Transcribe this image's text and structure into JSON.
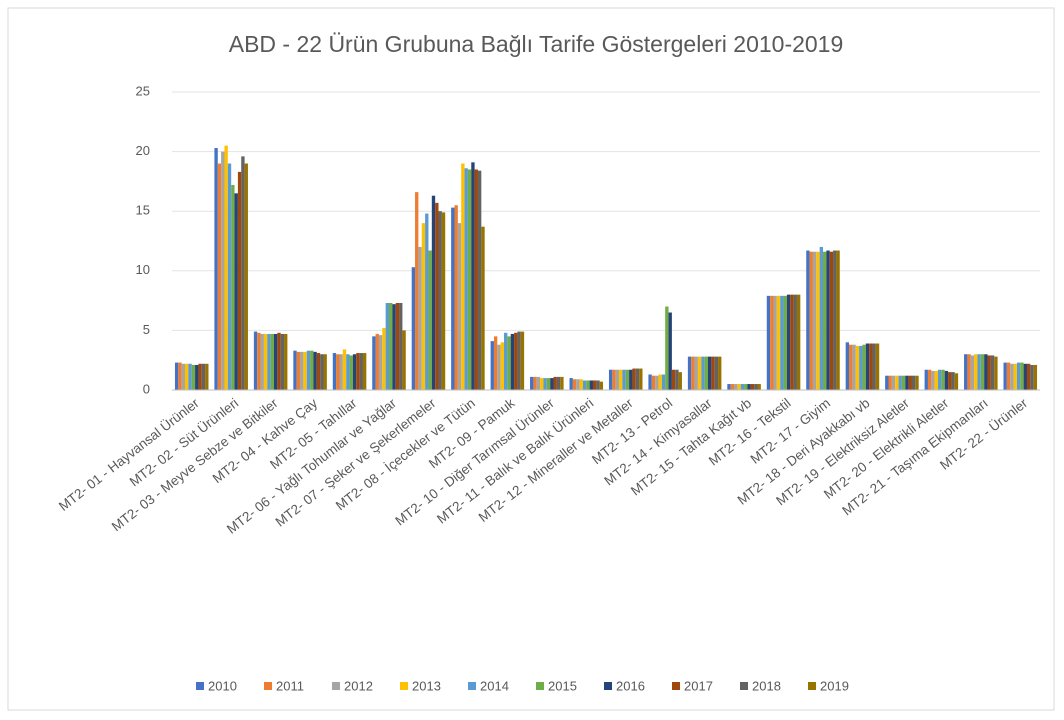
{
  "chart_data": {
    "type": "bar",
    "title": "ABD - 22 Ürün Grubuna Bağlı Tarife Göstergeleri 2010-2019",
    "categories": [
      "MT2- 01 - Hayvansal Ürünler",
      "MT2- 02 - Süt Ürünleri",
      "MT2- 03 - Meyve Sebze ve Bitkiler",
      "MT2- 04 - Kahve Çay",
      "MT2- 05 - Tahıllar",
      "MT2- 06 - Yağlı Tohumlar ve Yağlar",
      "MT2- 07 - Şeker ve Şekerlemeler",
      "MT2- 08 - İçecekler ve Tütün",
      "MT2- 09 - Pamuk",
      "MT2- 10 - Diğer Tarımsal Ürünler",
      "MT2- 11 - Balık ve Balık Ürünleri",
      "MT2- 12 - Mineraller ve Metaller",
      "MT2- 13 - Petrol",
      "MT2- 14 - Kimyasallar",
      "MT2- 15 - Tahta Kağıt vb",
      "MT2- 16 - Tekstil",
      "MT2- 17 - Giyim",
      "MT2- 18 - Deri Ayakkabı vb",
      "MT2- 19 - Elektriksiz Aletler",
      "MT2- 20 - Elektrikli Aletler",
      "MT2- 21 - Taşıma Ekipmanları",
      "MT2- 22 - Ürünler"
    ],
    "series": [
      {
        "name": "2010",
        "color": "#4472c4",
        "values": [
          2.3,
          20.3,
          4.9,
          3.3,
          3.1,
          4.5,
          10.3,
          15.3,
          4.1,
          1.1,
          1.0,
          1.7,
          1.3,
          2.8,
          0.5,
          7.9,
          11.7,
          4.0,
          1.2,
          1.7,
          3.0,
          2.3
        ]
      },
      {
        "name": "2011",
        "color": "#ed7d31",
        "values": [
          2.3,
          19.0,
          4.8,
          3.2,
          3.0,
          4.7,
          16.6,
          15.5,
          4.5,
          1.1,
          0.9,
          1.7,
          1.2,
          2.8,
          0.5,
          7.9,
          11.6,
          3.8,
          1.2,
          1.7,
          3.0,
          2.3
        ]
      },
      {
        "name": "2012",
        "color": "#a5a5a5",
        "values": [
          2.2,
          20.0,
          4.7,
          3.2,
          3.0,
          4.6,
          12.0,
          14.0,
          3.8,
          1.1,
          0.9,
          1.7,
          1.2,
          2.8,
          0.5,
          7.9,
          11.6,
          3.8,
          1.2,
          1.6,
          2.9,
          2.2
        ]
      },
      {
        "name": "2013",
        "color": "#ffc000",
        "values": [
          2.2,
          20.5,
          4.7,
          3.2,
          3.4,
          5.2,
          14.0,
          19.0,
          4.0,
          1.0,
          0.9,
          1.7,
          1.3,
          2.8,
          0.5,
          7.9,
          11.6,
          3.7,
          1.2,
          1.6,
          3.0,
          2.2
        ]
      },
      {
        "name": "2014",
        "color": "#5b9bd5",
        "values": [
          2.2,
          19.0,
          4.7,
          3.3,
          3.0,
          7.3,
          14.8,
          18.6,
          4.8,
          1.0,
          0.8,
          1.7,
          1.3,
          2.8,
          0.5,
          7.9,
          12.0,
          3.7,
          1.2,
          1.7,
          3.0,
          2.3
        ]
      },
      {
        "name": "2015",
        "color": "#70ad47",
        "values": [
          2.1,
          17.2,
          4.7,
          3.3,
          2.9,
          7.3,
          11.7,
          18.5,
          4.5,
          1.0,
          0.8,
          1.7,
          7.0,
          2.8,
          0.5,
          7.9,
          11.6,
          3.8,
          1.2,
          1.7,
          3.0,
          2.3
        ]
      },
      {
        "name": "2016",
        "color": "#264478",
        "values": [
          2.1,
          16.5,
          4.7,
          3.2,
          3.0,
          7.2,
          16.3,
          19.1,
          4.7,
          1.0,
          0.8,
          1.7,
          6.5,
          2.8,
          0.5,
          8.0,
          11.7,
          3.9,
          1.2,
          1.6,
          3.0,
          2.2
        ]
      },
      {
        "name": "2017",
        "color": "#9e480e",
        "values": [
          2.2,
          18.3,
          4.8,
          3.1,
          3.1,
          7.3,
          15.7,
          18.5,
          4.8,
          1.1,
          0.8,
          1.8,
          1.7,
          2.8,
          0.5,
          8.0,
          11.6,
          3.9,
          1.2,
          1.5,
          2.9,
          2.2
        ]
      },
      {
        "name": "2018",
        "color": "#636363",
        "values": [
          2.2,
          19.6,
          4.7,
          3.0,
          3.1,
          7.3,
          15.0,
          18.4,
          4.9,
          1.1,
          0.8,
          1.8,
          1.7,
          2.8,
          0.5,
          8.0,
          11.7,
          3.9,
          1.2,
          1.5,
          2.9,
          2.1
        ]
      },
      {
        "name": "2019",
        "color": "#997300",
        "values": [
          2.2,
          19.0,
          4.7,
          3.0,
          3.1,
          5.0,
          14.9,
          13.7,
          4.9,
          1.1,
          0.7,
          1.8,
          1.5,
          2.8,
          0.5,
          8.0,
          11.7,
          3.9,
          1.2,
          1.4,
          2.8,
          2.1
        ]
      }
    ],
    "ylim": [
      0,
      25
    ],
    "yticks": [
      0,
      5,
      10,
      15,
      20,
      25
    ],
    "grid": true,
    "legend": "bottom"
  }
}
